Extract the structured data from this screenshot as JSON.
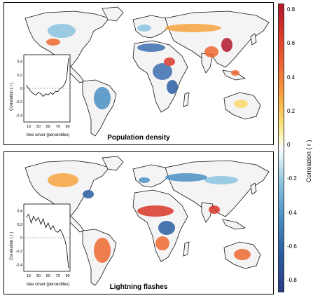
{
  "panels": [
    {
      "title": "Population density",
      "inset": {
        "ylabel": "Correlation ( r )",
        "xlabel": "tree cover (percentiles)",
        "yticks": [
          "0.4",
          "0.2",
          "0",
          "-0.2",
          "-0.4"
        ],
        "xticks": [
          "10",
          "30",
          "50",
          "70",
          "90"
        ]
      }
    },
    {
      "title": "Lightning flashes",
      "inset": {
        "ylabel": "Correlation ( r )",
        "xlabel": "tree cover (percentiles)",
        "yticks": [
          "0.4",
          "0.2",
          "0",
          "-0.2",
          "-0.4"
        ],
        "xticks": [
          "10",
          "30",
          "50",
          "70",
          "90"
        ]
      }
    }
  ],
  "colorbar": {
    "label": "Correlation ( r )",
    "ticks": [
      "0.8",
      "0.6",
      "0.4",
      "0.2",
      "0",
      "-0.2",
      "-0.4",
      "-0.6",
      "-0.8"
    ],
    "colors": {
      "max": "#b2182b",
      "mid": "#ffffff",
      "min": "#283c86"
    }
  },
  "chart_data": [
    {
      "type": "line",
      "x": [
        5,
        10,
        15,
        20,
        25,
        30,
        35,
        40,
        45,
        50,
        55,
        60,
        65,
        70,
        75,
        80,
        85,
        88,
        90,
        92
      ],
      "series": [
        {
          "values": [
            0.05,
            0.0,
            -0.05,
            -0.08,
            -0.1,
            -0.06,
            -0.08,
            -0.12,
            -0.08,
            -0.1,
            -0.06,
            -0.09,
            -0.04,
            -0.05,
            0.0,
            0.02,
            0.08,
            0.15,
            0.3,
            0.45
          ]
        }
      ],
      "xlabel": "tree cover (percentiles)",
      "ylabel": "Correlation ( r )",
      "xlim": [
        0,
        95
      ],
      "ylim": [
        -0.5,
        0.5
      ]
    },
    {
      "type": "line",
      "x": [
        5,
        10,
        15,
        20,
        25,
        30,
        35,
        40,
        45,
        50,
        55,
        60,
        65,
        70,
        75,
        80,
        85,
        88,
        90,
        92
      ],
      "series": [
        {
          "values": [
            0.3,
            0.35,
            0.22,
            0.32,
            0.25,
            0.3,
            0.2,
            0.28,
            0.15,
            0.22,
            0.12,
            0.18,
            0.1,
            0.08,
            0.12,
            0.05,
            -0.05,
            -0.15,
            -0.3,
            -0.45
          ]
        }
      ],
      "xlabel": "tree cover (percentiles)",
      "ylabel": "Correlation ( r )",
      "xlim": [
        0,
        95
      ],
      "ylim": [
        -0.5,
        0.5
      ]
    }
  ]
}
